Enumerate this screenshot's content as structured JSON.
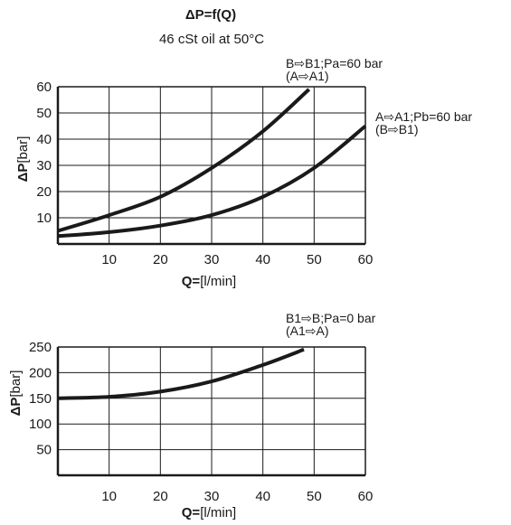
{
  "header": {
    "title": "ΔP=f(Q)",
    "subtitle": "46 cSt oil at 50°C"
  },
  "chart_data": [
    {
      "type": "line",
      "xlabel_bold": "Q=",
      "xlabel_unit": "[l/min]",
      "ylabel_bold": "ΔP",
      "ylabel_unit": "[bar]",
      "xlim": [
        0,
        60
      ],
      "ylim": [
        0,
        60
      ],
      "x_ticks": [
        "10",
        "20",
        "30",
        "40",
        "50",
        "60"
      ],
      "y_ticks": [
        "10",
        "20",
        "30",
        "40",
        "50",
        "60"
      ],
      "grid": true,
      "series": [
        {
          "name_line1": "B⇨B1;Pa=60 bar",
          "name_line2": "(A⇨A1)",
          "x": [
            0,
            10,
            20,
            30,
            40,
            49
          ],
          "y": [
            5,
            11,
            18,
            29,
            43,
            59
          ]
        },
        {
          "name_line1": "A⇨A1;Pb=60 bar",
          "name_line2": "(B⇨B1)",
          "x": [
            0,
            10,
            20,
            30,
            40,
            50,
            60
          ],
          "y": [
            3,
            4.5,
            7,
            11,
            18,
            29,
            45
          ]
        }
      ]
    },
    {
      "type": "line",
      "xlabel_bold": "Q=",
      "xlabel_unit": "[l/min]",
      "ylabel_bold": "ΔP",
      "ylabel_unit": "[bar]",
      "xlim": [
        0,
        60
      ],
      "ylim": [
        0,
        250
      ],
      "x_ticks": [
        "10",
        "20",
        "30",
        "40",
        "50",
        "60"
      ],
      "y_ticks": [
        "50",
        "100",
        "150",
        "200",
        "250"
      ],
      "grid": true,
      "series": [
        {
          "name_line1": "B1⇨B;Pa=0 bar",
          "name_line2": "(A1⇨A)",
          "x": [
            0,
            10,
            20,
            30,
            40,
            48
          ],
          "y": [
            150,
            153,
            163,
            183,
            215,
            245
          ]
        }
      ]
    }
  ]
}
